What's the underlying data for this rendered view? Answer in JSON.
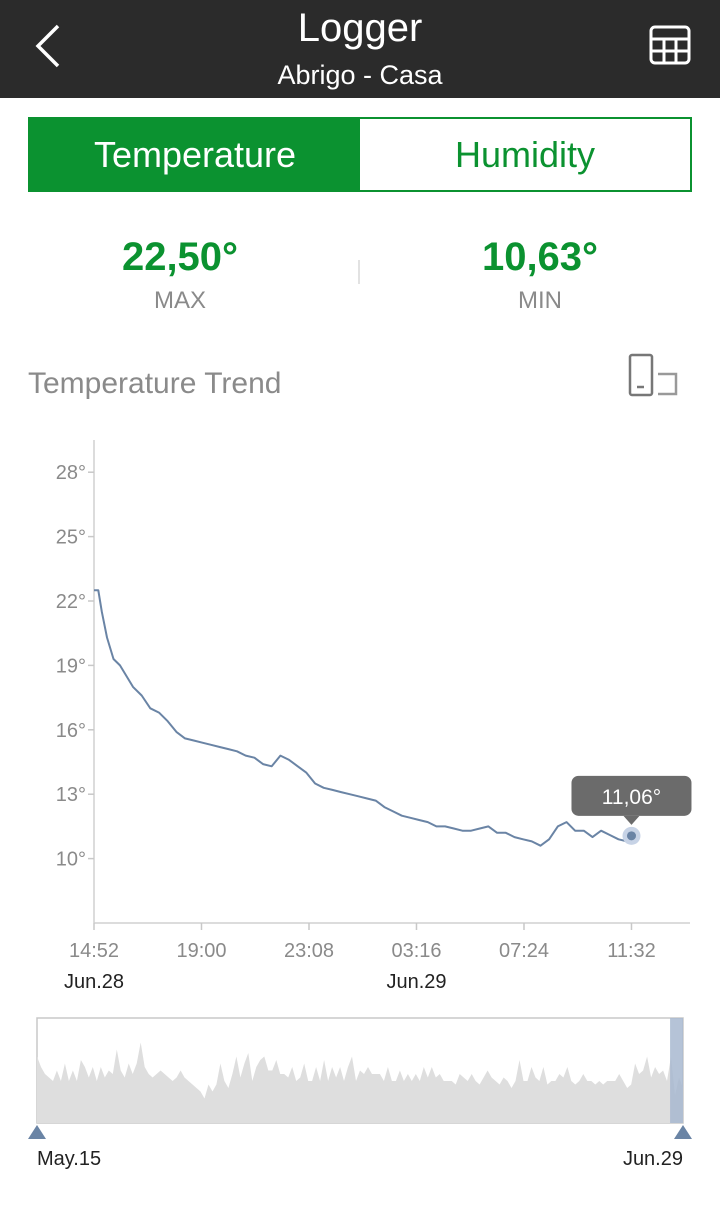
{
  "header": {
    "title": "Logger",
    "subtitle": "Abrigo - Casa"
  },
  "tabs": [
    {
      "label": "Temperature",
      "active": true
    },
    {
      "label": "Humidity",
      "active": false
    }
  ],
  "stats": {
    "max": {
      "value": "22,50°",
      "label": "MAX"
    },
    "min": {
      "value": "10,63°",
      "label": "MIN"
    }
  },
  "trend": {
    "title": "Temperature Trend"
  },
  "colors": {
    "accent": "#0b9230",
    "line": "#6a84a5",
    "topbar": "#2b2b2b"
  },
  "icons": {
    "back": "chevron-left-icon",
    "table": "table-grid-icon",
    "rotate": "rotate-screen-icon"
  },
  "chart_data": {
    "type": "line",
    "yticks": [
      "28°",
      "25°",
      "22°",
      "19°",
      "16°",
      "13°",
      "10°"
    ],
    "ytick_values": [
      28,
      25,
      22,
      19,
      16,
      13,
      10
    ],
    "ylim": [
      7,
      29.5
    ],
    "xticks": [
      "14:52",
      "19:00",
      "23:08",
      "03:16",
      "07:24",
      "11:32"
    ],
    "xtick_values": [
      0,
      248,
      496,
      744,
      992,
      1240
    ],
    "xlim": [
      0,
      1375
    ],
    "date_labels": [
      {
        "label": "Jun.28",
        "at": 0
      },
      {
        "label": "Jun.29",
        "at": 744
      }
    ],
    "series": [
      {
        "x": [
          0,
          10,
          18,
          30,
          45,
          60,
          75,
          90,
          110,
          130,
          150,
          170,
          190,
          210,
          230,
          250,
          270,
          290,
          310,
          330,
          350,
          370,
          390,
          410,
          430,
          450,
          470,
          490,
          510,
          530,
          550,
          570,
          590,
          610,
          630,
          650,
          670,
          690,
          710,
          730,
          750,
          770,
          790,
          810,
          830,
          850,
          870,
          890,
          910,
          930,
          950,
          970,
          990,
          1010,
          1030,
          1050,
          1070,
          1090,
          1110,
          1130,
          1150,
          1170,
          1190,
          1210,
          1230,
          1240
        ],
        "y": [
          22.5,
          22.5,
          21.5,
          20.3,
          19.3,
          19.0,
          18.5,
          18.0,
          17.6,
          17.0,
          16.8,
          16.4,
          15.9,
          15.6,
          15.5,
          15.4,
          15.3,
          15.2,
          15.1,
          15.0,
          14.8,
          14.7,
          14.4,
          14.3,
          14.8,
          14.6,
          14.3,
          14.0,
          13.5,
          13.3,
          13.2,
          13.1,
          13.0,
          12.9,
          12.8,
          12.7,
          12.4,
          12.2,
          12.0,
          11.9,
          11.8,
          11.7,
          11.5,
          11.5,
          11.4,
          11.3,
          11.3,
          11.4,
          11.5,
          11.2,
          11.2,
          11.0,
          10.9,
          10.8,
          10.6,
          10.9,
          11.5,
          11.7,
          11.3,
          11.3,
          11.0,
          11.3,
          11.1,
          10.9,
          10.8,
          11.06
        ]
      }
    ],
    "tooltip": {
      "label": "11,06°",
      "x": 1240,
      "y": 11.06
    },
    "navigator": {
      "start_label": "May.15",
      "end_label": "Jun.29",
      "window": [
        0.98,
        1.0
      ],
      "series_y": [
        19.5,
        18,
        17,
        16.5,
        16,
        17.5,
        16,
        18.5,
        16,
        17.5,
        16,
        19,
        18,
        16.5,
        18,
        16,
        18,
        16.5,
        17.5,
        17,
        20.5,
        17.5,
        16.5,
        18.5,
        17,
        18.5,
        21.5,
        18,
        17,
        16.5,
        17,
        17.5,
        17,
        16.5,
        16,
        16.5,
        17.5,
        16.5,
        16,
        15.5,
        15,
        14.5,
        13.5,
        15.5,
        14.5,
        15.5,
        18.5,
        16,
        15,
        17,
        19.5,
        16.5,
        18.5,
        20,
        16,
        18,
        19,
        19.5,
        17.5,
        17.5,
        19,
        17,
        17,
        16.5,
        18,
        16,
        16.5,
        18.5,
        16,
        16,
        18,
        16,
        19,
        16,
        18,
        16.5,
        18,
        16,
        18,
        19.5,
        16,
        17.5,
        17,
        18,
        17,
        17,
        17,
        16,
        18,
        16,
        16,
        17.5,
        16,
        17,
        16,
        17,
        16,
        18,
        16.5,
        18,
        16.5,
        17,
        16,
        16,
        16,
        15.5,
        17,
        16.5,
        16,
        17,
        16,
        15.5,
        16.5,
        17.5,
        16.5,
        16,
        15.5,
        16.5,
        16,
        15,
        16,
        19,
        16,
        16,
        18,
        16.5,
        16,
        18,
        15.5,
        16,
        16,
        17,
        16.5,
        18,
        16,
        15.5,
        16,
        17,
        16,
        16,
        15.5,
        16,
        15.5,
        16,
        16,
        16,
        17,
        16,
        15,
        15.5,
        18.5,
        17,
        17.5,
        19.5,
        16.5,
        18,
        17,
        17.5,
        16,
        19.5,
        14,
        16.5,
        15
      ],
      "ylim": [
        10,
        25
      ]
    }
  }
}
